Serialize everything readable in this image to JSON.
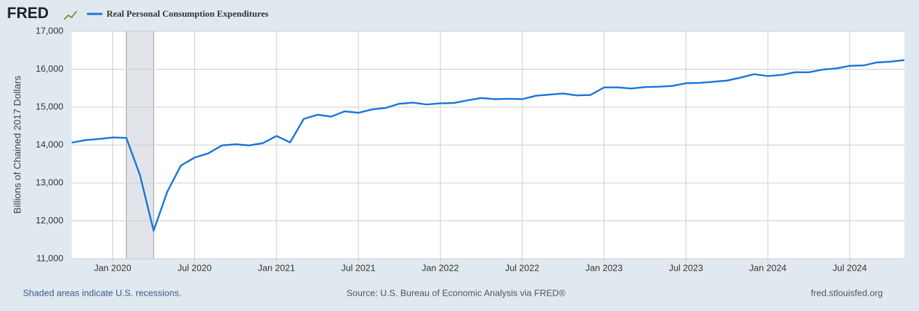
{
  "chart_data": {
    "type": "line",
    "logo": "FRED",
    "y_label": "Billions of Chained 2017 Dollars",
    "recession_note": "Shaded areas indicate U.S. recessions.",
    "source": "Source: U.S. Bureau of Economic Analysis via FRED®",
    "url": "fred.stlouisfed.org",
    "x": [
      "2019-10",
      "2019-11",
      "2019-12",
      "2020-01",
      "2020-02",
      "2020-03",
      "2020-04",
      "2020-05",
      "2020-06",
      "2020-07",
      "2020-08",
      "2020-09",
      "2020-10",
      "2020-11",
      "2020-12",
      "2021-01",
      "2021-02",
      "2021-03",
      "2021-04",
      "2021-05",
      "2021-06",
      "2021-07",
      "2021-08",
      "2021-09",
      "2021-10",
      "2021-11",
      "2021-12",
      "2022-01",
      "2022-02",
      "2022-03",
      "2022-04",
      "2022-05",
      "2022-06",
      "2022-07",
      "2022-08",
      "2022-09",
      "2022-10",
      "2022-11",
      "2022-12",
      "2023-01",
      "2023-02",
      "2023-03",
      "2023-04",
      "2023-05",
      "2023-06",
      "2023-07",
      "2023-08",
      "2023-09",
      "2023-10",
      "2023-11",
      "2023-12",
      "2024-01",
      "2024-02",
      "2024-03",
      "2024-04",
      "2024-05",
      "2024-06",
      "2024-07",
      "2024-08",
      "2024-09",
      "2024-10",
      "2024-11"
    ],
    "series": [
      {
        "name": "Real Personal Consumption Expenditures",
        "color": "#1a75d9",
        "values": [
          14063,
          14130,
          14160,
          14200,
          14190,
          13210,
          11740,
          12770,
          13460,
          13670,
          13780,
          13990,
          14020,
          13990,
          14050,
          14240,
          14070,
          14690,
          14800,
          14750,
          14890,
          14850,
          14940,
          14980,
          15090,
          15120,
          15070,
          15100,
          15110,
          15180,
          15240,
          15210,
          15220,
          15210,
          15300,
          15330,
          15360,
          15310,
          15320,
          15520,
          15520,
          15490,
          15530,
          15540,
          15560,
          15630,
          15640,
          15670,
          15700,
          15780,
          15870,
          15820,
          15850,
          15920,
          15920,
          15990,
          16020,
          16090,
          16100,
          16180,
          16200,
          16240
        ]
      }
    ],
    "recessions": [
      [
        "2020-02",
        "2020-04"
      ]
    ],
    "xlim": [
      "2019-10",
      "2024-11"
    ],
    "xticks": [
      {
        "value": "2020-01",
        "label": "Jan 2020"
      },
      {
        "value": "2020-07",
        "label": "Jul 2020"
      },
      {
        "value": "2021-01",
        "label": "Jan 2021"
      },
      {
        "value": "2021-07",
        "label": "Jul 2021"
      },
      {
        "value": "2022-01",
        "label": "Jan 2022"
      },
      {
        "value": "2022-07",
        "label": "Jul 2022"
      },
      {
        "value": "2023-01",
        "label": "Jan 2023"
      },
      {
        "value": "2023-07",
        "label": "Jul 2023"
      },
      {
        "value": "2024-01",
        "label": "Jan 2024"
      },
      {
        "value": "2024-07",
        "label": "Jul 2024"
      }
    ],
    "ylim": [
      11000,
      17000
    ],
    "yticks": [
      {
        "value": 11000,
        "label": "11,000"
      },
      {
        "value": 12000,
        "label": "12,000"
      },
      {
        "value": 13000,
        "label": "13,000"
      },
      {
        "value": 14000,
        "label": "14,000"
      },
      {
        "value": 15000,
        "label": "15,000"
      },
      {
        "value": 16000,
        "label": "16,000"
      },
      {
        "value": 17000,
        "label": "17,000"
      }
    ],
    "grid": true
  }
}
